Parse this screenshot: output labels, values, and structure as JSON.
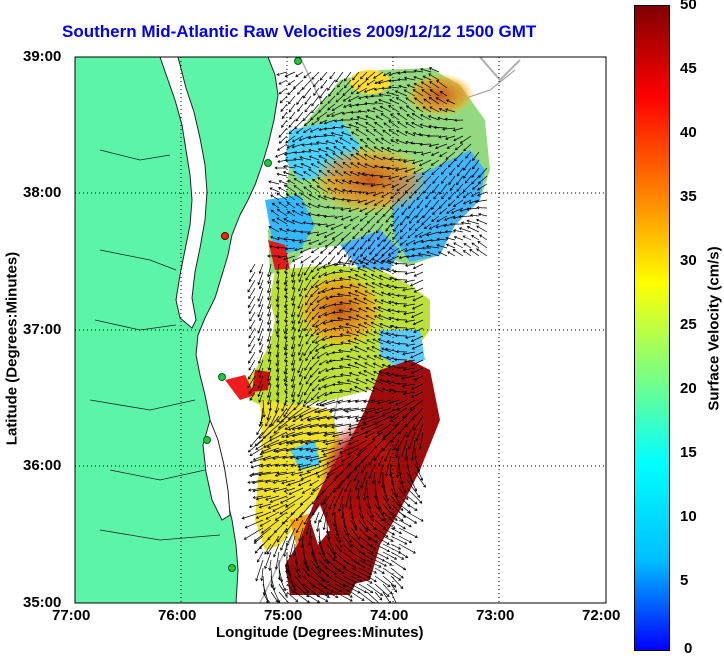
{
  "title": "Southern Mid-Atlantic Raw Velocities 2009/12/12 1500 GMT",
  "axes": {
    "xlabel": "Longitude (Degrees:Minutes)",
    "ylabel": "Latitude (Degrees:Minutes)",
    "xticks": [
      "77:00",
      "76:00",
      "75:00",
      "74:00",
      "73:00",
      "72:00"
    ],
    "yticks": [
      "39:00",
      "38:00",
      "37:00",
      "36:00",
      "35:00"
    ],
    "xlim": [
      -77,
      -72
    ],
    "ylim": [
      35,
      39
    ],
    "grid": true
  },
  "colorbar": {
    "label": "Surface Velocity (cm/s)",
    "ticks": [
      "50",
      "45",
      "40",
      "35",
      "30",
      "25",
      "20",
      "15",
      "10",
      "5",
      "0"
    ],
    "range": [
      0,
      50
    ],
    "colormap": [
      "#0000ff",
      "#00bfff",
      "#00ffff",
      "#7fff7f",
      "#ffff00",
      "#ff8000",
      "#ff0000",
      "#800000"
    ]
  },
  "colors": {
    "land": "#5cf5a8",
    "ocean": "#ffffff",
    "title": "#0000ee",
    "coast": "#333333",
    "bathymetry": "#b0b0b0",
    "stations": "#22cc22",
    "station_highlight": "#ff2200"
  }
}
